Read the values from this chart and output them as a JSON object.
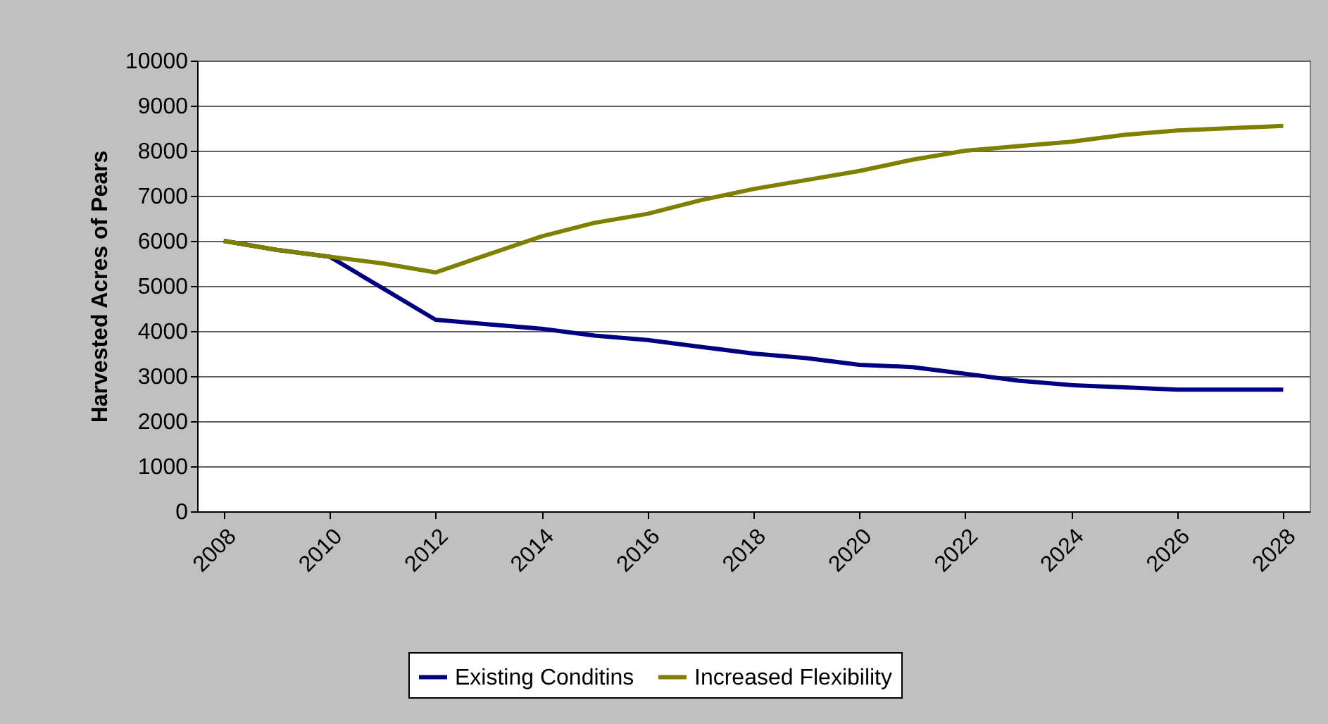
{
  "chart_data": {
    "type": "line",
    "ylabel": "Harvested Acres of Pears",
    "x": [
      2008,
      2009,
      2010,
      2011,
      2012,
      2013,
      2014,
      2015,
      2016,
      2017,
      2018,
      2019,
      2020,
      2021,
      2022,
      2023,
      2024,
      2025,
      2026,
      2027,
      2028
    ],
    "series": [
      {
        "name": "Existing Conditins",
        "color": "#000080",
        "values": [
          6000,
          5800,
          5650,
          4950,
          4250,
          4150,
          4050,
          3900,
          3800,
          3650,
          3500,
          3400,
          3250,
          3200,
          3050,
          2900,
          2800,
          2750,
          2700,
          2700,
          2700
        ]
      },
      {
        "name": "Increased Flexibility",
        "color": "#808000",
        "values": [
          6000,
          5800,
          5650,
          5500,
          5300,
          5700,
          6100,
          6400,
          6600,
          6900,
          7150,
          7350,
          7550,
          7800,
          8000,
          8100,
          8200,
          8350,
          8450,
          8500,
          8550
        ]
      }
    ],
    "xlim": [
      2007.5,
      2028.5
    ],
    "xticks": [
      2008,
      2010,
      2012,
      2014,
      2016,
      2018,
      2020,
      2022,
      2024,
      2026,
      2028
    ],
    "ylim": [
      0,
      10000
    ],
    "yticks": [
      0,
      1000,
      2000,
      3000,
      4000,
      5000,
      6000,
      7000,
      8000,
      9000,
      10000
    ],
    "grid": "y",
    "legend": "bottom",
    "marker": "none",
    "line_style": "solid"
  }
}
